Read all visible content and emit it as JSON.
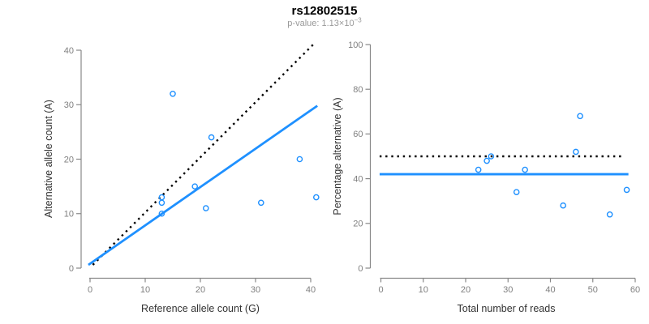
{
  "title": "rs12802515",
  "subtitle": {
    "text": "p-value: 1.13×10",
    "exponent": "−3"
  },
  "colors": {
    "point_blue": "#1E90FF",
    "line_blue": "#1E90FF",
    "dotted_line": "#000000",
    "axis": "#888888",
    "tick_label": "#7f7f7f",
    "axis_title": "#333333",
    "subtitle_gray": "#999999"
  },
  "chart_data": [
    {
      "type": "scatter",
      "name": "allele-counts",
      "xlabel": "Reference allele count (G)",
      "ylabel": "Alternative allele count (A)",
      "xlim": [
        0,
        41
      ],
      "ylim": [
        0,
        41
      ],
      "xticks": [
        0,
        10,
        20,
        30,
        40
      ],
      "yticks": [
        0,
        10,
        20,
        30,
        40
      ],
      "grid": false,
      "legend": null,
      "points": [
        [
          15,
          32
        ],
        [
          22,
          24
        ],
        [
          38,
          20
        ],
        [
          19,
          15
        ],
        [
          13,
          13
        ],
        [
          13,
          12
        ],
        [
          13,
          10
        ],
        [
          21,
          11
        ],
        [
          31,
          12
        ],
        [
          41,
          13
        ]
      ],
      "lines": [
        {
          "name": "identity-line",
          "style": "dotted",
          "color": "#000000",
          "from": [
            0.5,
            0.6
          ],
          "to": [
            40.8,
            41.4
          ]
        },
        {
          "name": "regression-line",
          "style": "solid",
          "color": "#1E90FF",
          "from": [
            -0.3,
            0.6
          ],
          "to": [
            41.2,
            29.8
          ]
        }
      ]
    },
    {
      "type": "scatter",
      "name": "percentage-vs-coverage",
      "xlabel": "Total number of reads",
      "ylabel": "Percentage alternative (A)",
      "xlim": [
        0,
        60
      ],
      "ylim": [
        0,
        100
      ],
      "xticks": [
        0,
        10,
        20,
        30,
        40,
        50,
        60
      ],
      "yticks": [
        0,
        20,
        40,
        60,
        80,
        100
      ],
      "grid": false,
      "legend": null,
      "points": [
        [
          47,
          68
        ],
        [
          46,
          52
        ],
        [
          26,
          50
        ],
        [
          25,
          48
        ],
        [
          23,
          44
        ],
        [
          34,
          44
        ],
        [
          32,
          34
        ],
        [
          58,
          35
        ],
        [
          43,
          28
        ],
        [
          54,
          24
        ]
      ],
      "lines": [
        {
          "name": "fifty-percent-line",
          "style": "dotted",
          "color": "#000000",
          "from": [
            -0.3,
            50
          ],
          "to": [
            57,
            50
          ]
        },
        {
          "name": "mean-percentage-line",
          "style": "solid",
          "color": "#1E90FF",
          "from": [
            -0.3,
            42
          ],
          "to": [
            58.4,
            42
          ]
        }
      ]
    }
  ]
}
